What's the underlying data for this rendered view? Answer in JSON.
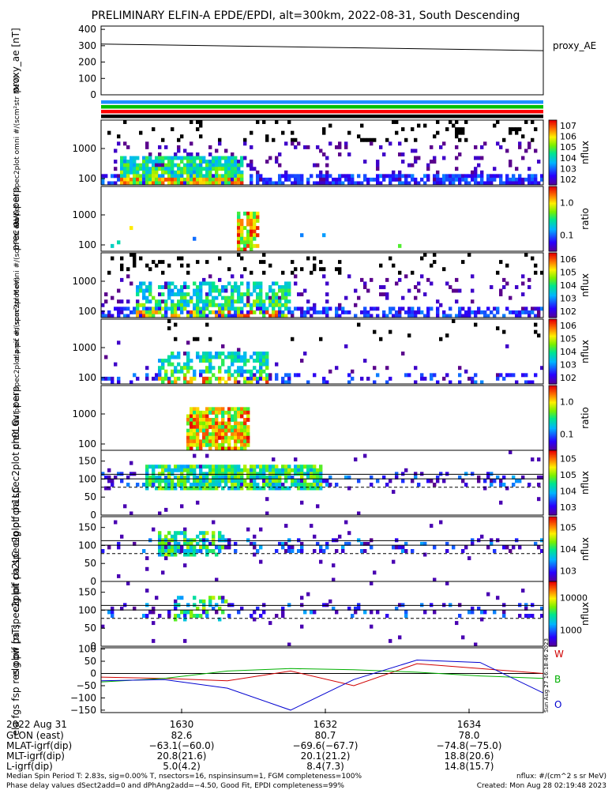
{
  "title": "PRELIMINARY ELFIN-A EPDE/EPDI, alt=300km, 2022-08-31, South Descending",
  "time_axis": {
    "date_label": "2022 Aug 31",
    "tick_labels": [
      "1630",
      "1632",
      "1634"
    ],
    "rows": [
      {
        "label": "GLON (east)",
        "values": [
          "82.6",
          "80.7",
          "78.0"
        ]
      },
      {
        "label": "MLAT-igrf(dip)",
        "values": [
          "−63.1(−60.0)",
          "−69.6(−67.7)",
          "−74.8(−75.0)"
        ]
      },
      {
        "label": "MLT-igrf(dip)",
        "values": [
          "20.8(21.6)",
          "20.1(21.2)",
          "18.8(20.6)"
        ]
      },
      {
        "label": "L-igrf(dip)",
        "values": [
          "5.0(4.2)",
          "8.4(7.3)",
          "14.8(15.7)"
        ]
      }
    ]
  },
  "footer": {
    "line1": "Median Spin Period T: 2.83s, sig=0.00% T, nsectors=16, nspinsinsum=1, FGM completeness=100%",
    "line2": "Phase delay values dSect2add=0 and dPhAng2add=−4.50, Good Fit, EPDI completeness=99%",
    "units": "nflux: #/(cm^2 s sr MeV)",
    "created": "Created: Mon Aug 28 02:19:48 2023"
  },
  "side_stamp": "Sun Aug 27 16:18:46 2023",
  "chart_data": [
    {
      "type": "line",
      "panel": "proxy_ae",
      "ylabel": "proxy_ae [nT]",
      "ylim": [
        0,
        420
      ],
      "yticks": [
        "0",
        "100",
        "200",
        "300",
        "400"
      ],
      "legend": [
        "proxy_AE"
      ],
      "x": [
        "16:28:30",
        "16:35:30"
      ],
      "values": [
        310,
        270
      ]
    },
    {
      "type": "heatmap",
      "panel": "status_bar",
      "bands": [
        "#1e90ff",
        "#00c000",
        "#ff0000",
        "#000000"
      ]
    },
    {
      "type": "heatmap",
      "panel": "elx_pef_en_spec2plot_omni",
      "ylabel": "ela pef en spec2plot omni #/(scm²str MeV)",
      "yticks": [
        "100",
        "1000"
      ],
      "colorbar": {
        "label": "nflux",
        "ticks": [
          "10^2",
          "10^3",
          "10^4",
          "10^5",
          "10^6",
          "10^7"
        ]
      }
    },
    {
      "type": "heatmap",
      "panel": "prec_ovr_perp_e",
      "ylabel": "prec ovr perp",
      "yticks": [
        "100",
        "1000"
      ],
      "colorbar": {
        "label": "ratio",
        "ticks": [
          "0.1",
          "1.0"
        ]
      }
    },
    {
      "type": "heatmap",
      "panel": "elx_pif_en_spec2plot_omni",
      "ylabel": "ela pif en spec2plot omni #/(scm²str MeV)",
      "yticks": [
        "100",
        "1000"
      ],
      "colorbar": {
        "label": "nflux",
        "ticks": [
          "10^2",
          "10^3",
          "10^4",
          "10^5",
          "10^6"
        ]
      }
    },
    {
      "type": "heatmap",
      "panel": "elx_pif_en_spec2plot_prec",
      "ylabel": "ela pif en spec2plot prec #/(scm²str MeV)",
      "yticks": [
        "100",
        "1000"
      ],
      "colorbar": {
        "label": "nflux",
        "ticks": [
          "10^2",
          "10^3",
          "10^4",
          "10^5",
          "10^6"
        ]
      }
    },
    {
      "type": "heatmap",
      "panel": "prec_ovr_perp_i",
      "ylabel": "prec ovr perp",
      "yticks": [
        "100",
        "1000"
      ],
      "colorbar": {
        "label": "ratio",
        "ticks": [
          "0.1",
          "1.0"
        ]
      }
    },
    {
      "type": "heatmap",
      "panel": "elx_pif_pa_spec2plot_ch0LC",
      "ylabel": "elg pif pa spec2plot ch0LC",
      "yticks": [
        "0",
        "50",
        "100",
        "150"
      ],
      "colorbar": {
        "label": "nflux",
        "ticks": [
          "10^3",
          "10^4",
          "10^5",
          "10^5"
        ]
      }
    },
    {
      "type": "heatmap",
      "panel": "elx_pif_pa_spec2plot_ch1LC",
      "ylabel": "elg pif pa spec2plot ch1LC",
      "yticks": [
        "0",
        "50",
        "100",
        "150"
      ],
      "colorbar": {
        "label": "nflux",
        "ticks": [
          "10^3",
          "10^4",
          "10^5"
        ]
      }
    },
    {
      "type": "heatmap",
      "panel": "elx_pif_pa_spec2plot_ch2LC",
      "ylabel": "elg pif pa spec2plot ch2LC",
      "yticks": [
        "0",
        "50",
        "100",
        "150"
      ],
      "colorbar": {
        "label": "nflux",
        "ticks": [
          "1000",
          "10000"
        ]
      }
    },
    {
      "type": "line",
      "panel": "elx_fgs_fsp_res_obw",
      "ylabel": "ela fgs fsp res obw [nT]",
      "ylim": [
        -160,
        105
      ],
      "yticks": [
        "−150",
        "−100",
        "−50",
        "0",
        "50",
        "100"
      ],
      "legend": [
        "W",
        "B",
        "O"
      ],
      "x": [
        "16:28:30",
        "16:30:00",
        "16:31:00",
        "16:31:30",
        "16:32:00",
        "16:33:00",
        "16:34:00",
        "16:35:30"
      ],
      "series": [
        {
          "name": "W",
          "color": "#d00000",
          "values": [
            -15,
            -20,
            -30,
            10,
            -50,
            40,
            20,
            0
          ]
        },
        {
          "name": "B",
          "color": "#00b000",
          "values": [
            -35,
            -20,
            10,
            20,
            15,
            5,
            -10,
            -20
          ]
        },
        {
          "name": "O",
          "color": "#0000d0",
          "values": [
            -30,
            -25,
            -60,
            -150,
            -25,
            55,
            45,
            -80
          ]
        }
      ]
    }
  ]
}
